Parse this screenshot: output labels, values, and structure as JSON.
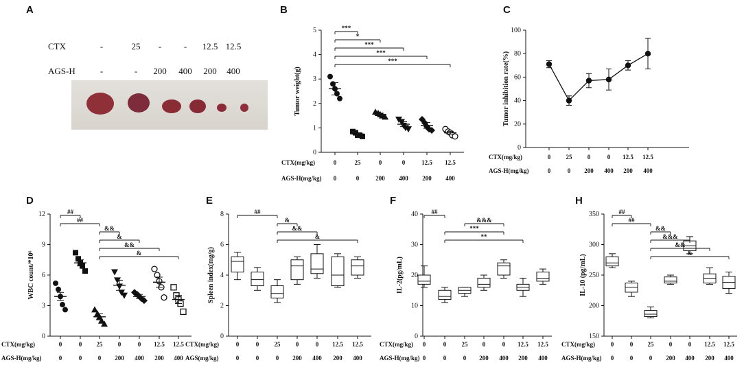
{
  "panels": {
    "A": "A",
    "B": "B",
    "C": "C",
    "D": "D",
    "E": "E",
    "F": "F",
    "H": "H"
  },
  "photo": {
    "labels": {
      "ctx": "CTX",
      "ags": "AGS-H"
    },
    "ctx": [
      "-",
      "25",
      "-",
      "-",
      "12.5",
      "12.5"
    ],
    "ags": [
      "-",
      "-",
      "200",
      "400",
      "200",
      "400"
    ]
  },
  "chart_data": [
    {
      "id": "B",
      "type": "scatter",
      "ylabel": "Tumor weight(g)",
      "ylim": [
        0,
        5
      ],
      "yticks": [
        0,
        1,
        2,
        3,
        4,
        5
      ],
      "markers": [
        "circle",
        "square",
        "triangle",
        "tri-down",
        "diamond",
        "open-circle"
      ],
      "table": {
        "row1_label": "CTX(mg/kg)",
        "row1": [
          "0",
          "25",
          "0",
          "0",
          "12.5",
          "12.5"
        ],
        "row2_label": "AGS-H(mg/kg)",
        "row2": [
          "0",
          "0",
          "200",
          "400",
          "200",
          "400"
        ]
      },
      "groups": [
        {
          "mean": 2.6,
          "sem": 0.25,
          "points": [
            3.1,
            2.8,
            2.6,
            2.4,
            2.2
          ]
        },
        {
          "mean": 0.75,
          "sem": 0.05,
          "points": [
            0.85,
            0.8,
            0.7,
            0.7,
            0.65
          ]
        },
        {
          "mean": 1.55,
          "sem": 0.05,
          "points": [
            1.65,
            1.6,
            1.55,
            1.5,
            1.45
          ]
        },
        {
          "mean": 1.15,
          "sem": 0.1,
          "points": [
            1.35,
            1.25,
            1.1,
            1.0,
            0.95
          ]
        },
        {
          "mean": 1.1,
          "sem": 0.12,
          "points": [
            1.35,
            1.2,
            1.05,
            0.95,
            0.9
          ]
        },
        {
          "mean": 0.8,
          "sem": 0.06,
          "points": [
            0.95,
            0.85,
            0.8,
            0.7,
            0.65
          ]
        }
      ],
      "brackets": [
        {
          "from": 0,
          "to": 1,
          "label": "***"
        },
        {
          "from": 0,
          "to": 2,
          "label": "*"
        },
        {
          "from": 0,
          "to": 3,
          "label": "***"
        },
        {
          "from": 0,
          "to": 4,
          "label": "***"
        },
        {
          "from": 0,
          "to": 5,
          "label": "***"
        }
      ]
    },
    {
      "id": "C",
      "type": "line",
      "ylabel": "Tumor inhibition rate(%)",
      "ylim": [
        0,
        100
      ],
      "yticks": [
        0,
        20,
        40,
        60,
        80,
        100
      ],
      "table": {
        "row1_label": "CTX(mg/kg)",
        "row1": [
          "0",
          "25",
          "0",
          "0",
          "12.5",
          "12.5"
        ],
        "row2_label": "AGS-H(mg/kg)",
        "row2": [
          "0",
          "0",
          "200",
          "400",
          "200",
          "400"
        ]
      },
      "values": [
        71,
        40,
        57,
        58,
        70,
        80
      ],
      "errors": [
        3,
        4,
        6,
        9,
        4,
        13
      ]
    },
    {
      "id": "D",
      "type": "scatter",
      "ylabel": "WBC count/*10⁶",
      "ylim": [
        0,
        12
      ],
      "yticks": [
        0,
        3,
        6,
        9,
        12
      ],
      "markers": [
        "circle",
        "square",
        "triangle",
        "tri-down",
        "diamond",
        "open-circle",
        "open-square"
      ],
      "table": {
        "row1_label": "CTX(mg/kg)",
        "row1": [
          "0",
          "0",
          "25",
          "0",
          "0",
          "12.5",
          "12.5"
        ],
        "row2_label": "AGS-H(mg/kg)",
        "row2": [
          "0",
          "0",
          "0",
          "200",
          "400",
          "200",
          "400"
        ]
      },
      "groups": [
        {
          "mean": 3.9,
          "sem": 0.4,
          "points": [
            5.2,
            4.6,
            3.9,
            3.1,
            2.6
          ]
        },
        {
          "mean": 7.2,
          "sem": 0.3,
          "points": [
            8.2,
            7.6,
            7.2,
            6.9,
            6.4
          ]
        },
        {
          "mean": 1.9,
          "sem": 0.3,
          "points": [
            2.6,
            2.2,
            1.9,
            1.5,
            1.2
          ]
        },
        {
          "mean": 5.0,
          "sem": 0.5,
          "points": [
            6.3,
            5.5,
            4.9,
            4.3,
            4.0
          ]
        },
        {
          "mean": 3.9,
          "sem": 0.2,
          "points": [
            4.3,
            4.1,
            3.9,
            3.7,
            3.5
          ]
        },
        {
          "mean": 5.3,
          "sem": 0.5,
          "points": [
            6.6,
            6.0,
            5.4,
            4.8,
            3.8
          ]
        },
        {
          "mean": 3.6,
          "sem": 0.4,
          "points": [
            4.8,
            4.0,
            3.6,
            3.2,
            2.4
          ]
        }
      ],
      "brackets": [
        {
          "from": 0,
          "to": 1,
          "label": "##"
        },
        {
          "from": 0,
          "to": 2,
          "label": "##"
        },
        {
          "from": 2,
          "to": 3,
          "label": "&&"
        },
        {
          "from": 2,
          "to": 4,
          "label": "&"
        },
        {
          "from": 2,
          "to": 5,
          "label": "&&"
        },
        {
          "from": 2,
          "to": 6,
          "label": "&"
        }
      ]
    },
    {
      "id": "E",
      "type": "box",
      "ylabel": "Spleen index(mg/g)",
      "ylim": [
        0,
        8
      ],
      "yticks": [
        0,
        2,
        4,
        6,
        8
      ],
      "table": {
        "row1_label": "CTX(mg/kg)",
        "row1": [
          "0",
          "0",
          "25",
          "0",
          "0",
          "12.5",
          "12.5"
        ],
        "row2_label": "AGS(mg/kg)",
        "row2": [
          "0",
          "0",
          "0",
          "200",
          "400",
          "200",
          "400"
        ]
      },
      "boxes": [
        [
          3.7,
          4.2,
          4.9,
          5.2,
          5.5
        ],
        [
          3.0,
          3.3,
          3.7,
          4.2,
          4.5
        ],
        [
          2.2,
          2.5,
          2.8,
          3.3,
          3.7
        ],
        [
          3.4,
          3.7,
          4.6,
          5.0,
          5.2
        ],
        [
          3.8,
          4.1,
          4.4,
          5.4,
          6.0
        ],
        [
          3.2,
          3.3,
          4.0,
          5.2,
          5.4
        ],
        [
          3.8,
          4.0,
          4.6,
          5.0,
          5.2
        ]
      ],
      "brackets": [
        {
          "from": 0,
          "to": 2,
          "label": "##"
        },
        {
          "from": 2,
          "to": 3,
          "label": "&"
        },
        {
          "from": 2,
          "to": 4,
          "label": "&&"
        },
        {
          "from": 2,
          "to": 6,
          "label": "&"
        }
      ]
    },
    {
      "id": "F",
      "type": "box",
      "ylabel": "IL-2(pg/mL)",
      "ylim": [
        0,
        40
      ],
      "yticks": [
        0,
        10,
        20,
        30,
        40
      ],
      "table": {
        "row1_label": "CTX(mg/kg)",
        "row1": [
          "0",
          "0",
          "25",
          "0",
          "0",
          "12.5",
          "12.5"
        ],
        "row2_label": "AGS-H(mg/kg)",
        "row2": [
          "0",
          "0",
          "0",
          "200",
          "400",
          "200",
          "400"
        ]
      },
      "boxes": [
        [
          16,
          17,
          18,
          20,
          23
        ],
        [
          11,
          12,
          13,
          15,
          16
        ],
        [
          13,
          14,
          15,
          16,
          16
        ],
        [
          15,
          16,
          17,
          19,
          20
        ],
        [
          19,
          20,
          23,
          24,
          25
        ],
        [
          13,
          15,
          16,
          17,
          19
        ],
        [
          17,
          18,
          19,
          21,
          22
        ]
      ],
      "brackets": [
        {
          "from": 0,
          "to": 1,
          "label": "##"
        },
        {
          "from": 2,
          "to": 4,
          "label": "&&&"
        },
        {
          "from": 1,
          "to": 4,
          "label": "***"
        },
        {
          "from": 1,
          "to": 5,
          "label": "**"
        }
      ]
    },
    {
      "id": "H",
      "type": "box",
      "ylabel": "IL-10 (pg/mL)",
      "ylim": [
        150,
        350
      ],
      "yticks": [
        150,
        200,
        250,
        300,
        350
      ],
      "table": {
        "row1_label": "CTX(mg/kg)",
        "row1": [
          "0",
          "0",
          "25",
          "0",
          "0",
          "12.5",
          "12.5"
        ],
        "row2_label": "AGS-H(mg/kg)",
        "row2": [
          "0",
          "0",
          "0",
          "200",
          "400",
          "200",
          "400"
        ]
      },
      "boxes": [
        [
          262,
          265,
          270,
          280,
          285
        ],
        [
          215,
          222,
          230,
          237,
          240
        ],
        [
          180,
          182,
          186,
          192,
          198
        ],
        [
          235,
          237,
          240,
          247,
          250
        ],
        [
          285,
          290,
          298,
          306,
          313
        ],
        [
          235,
          237,
          245,
          252,
          262
        ],
        [
          220,
          228,
          238,
          248,
          255
        ]
      ],
      "brackets": [
        {
          "from": 0,
          "to": 1,
          "label": "##"
        },
        {
          "from": 0,
          "to": 2,
          "label": "##"
        },
        {
          "from": 2,
          "to": 3,
          "label": "&&"
        },
        {
          "from": 2,
          "to": 4,
          "label": "&&&"
        },
        {
          "from": 2,
          "to": 5,
          "label": "&&"
        },
        {
          "from": 2,
          "to": 6,
          "label": "&"
        }
      ]
    }
  ]
}
